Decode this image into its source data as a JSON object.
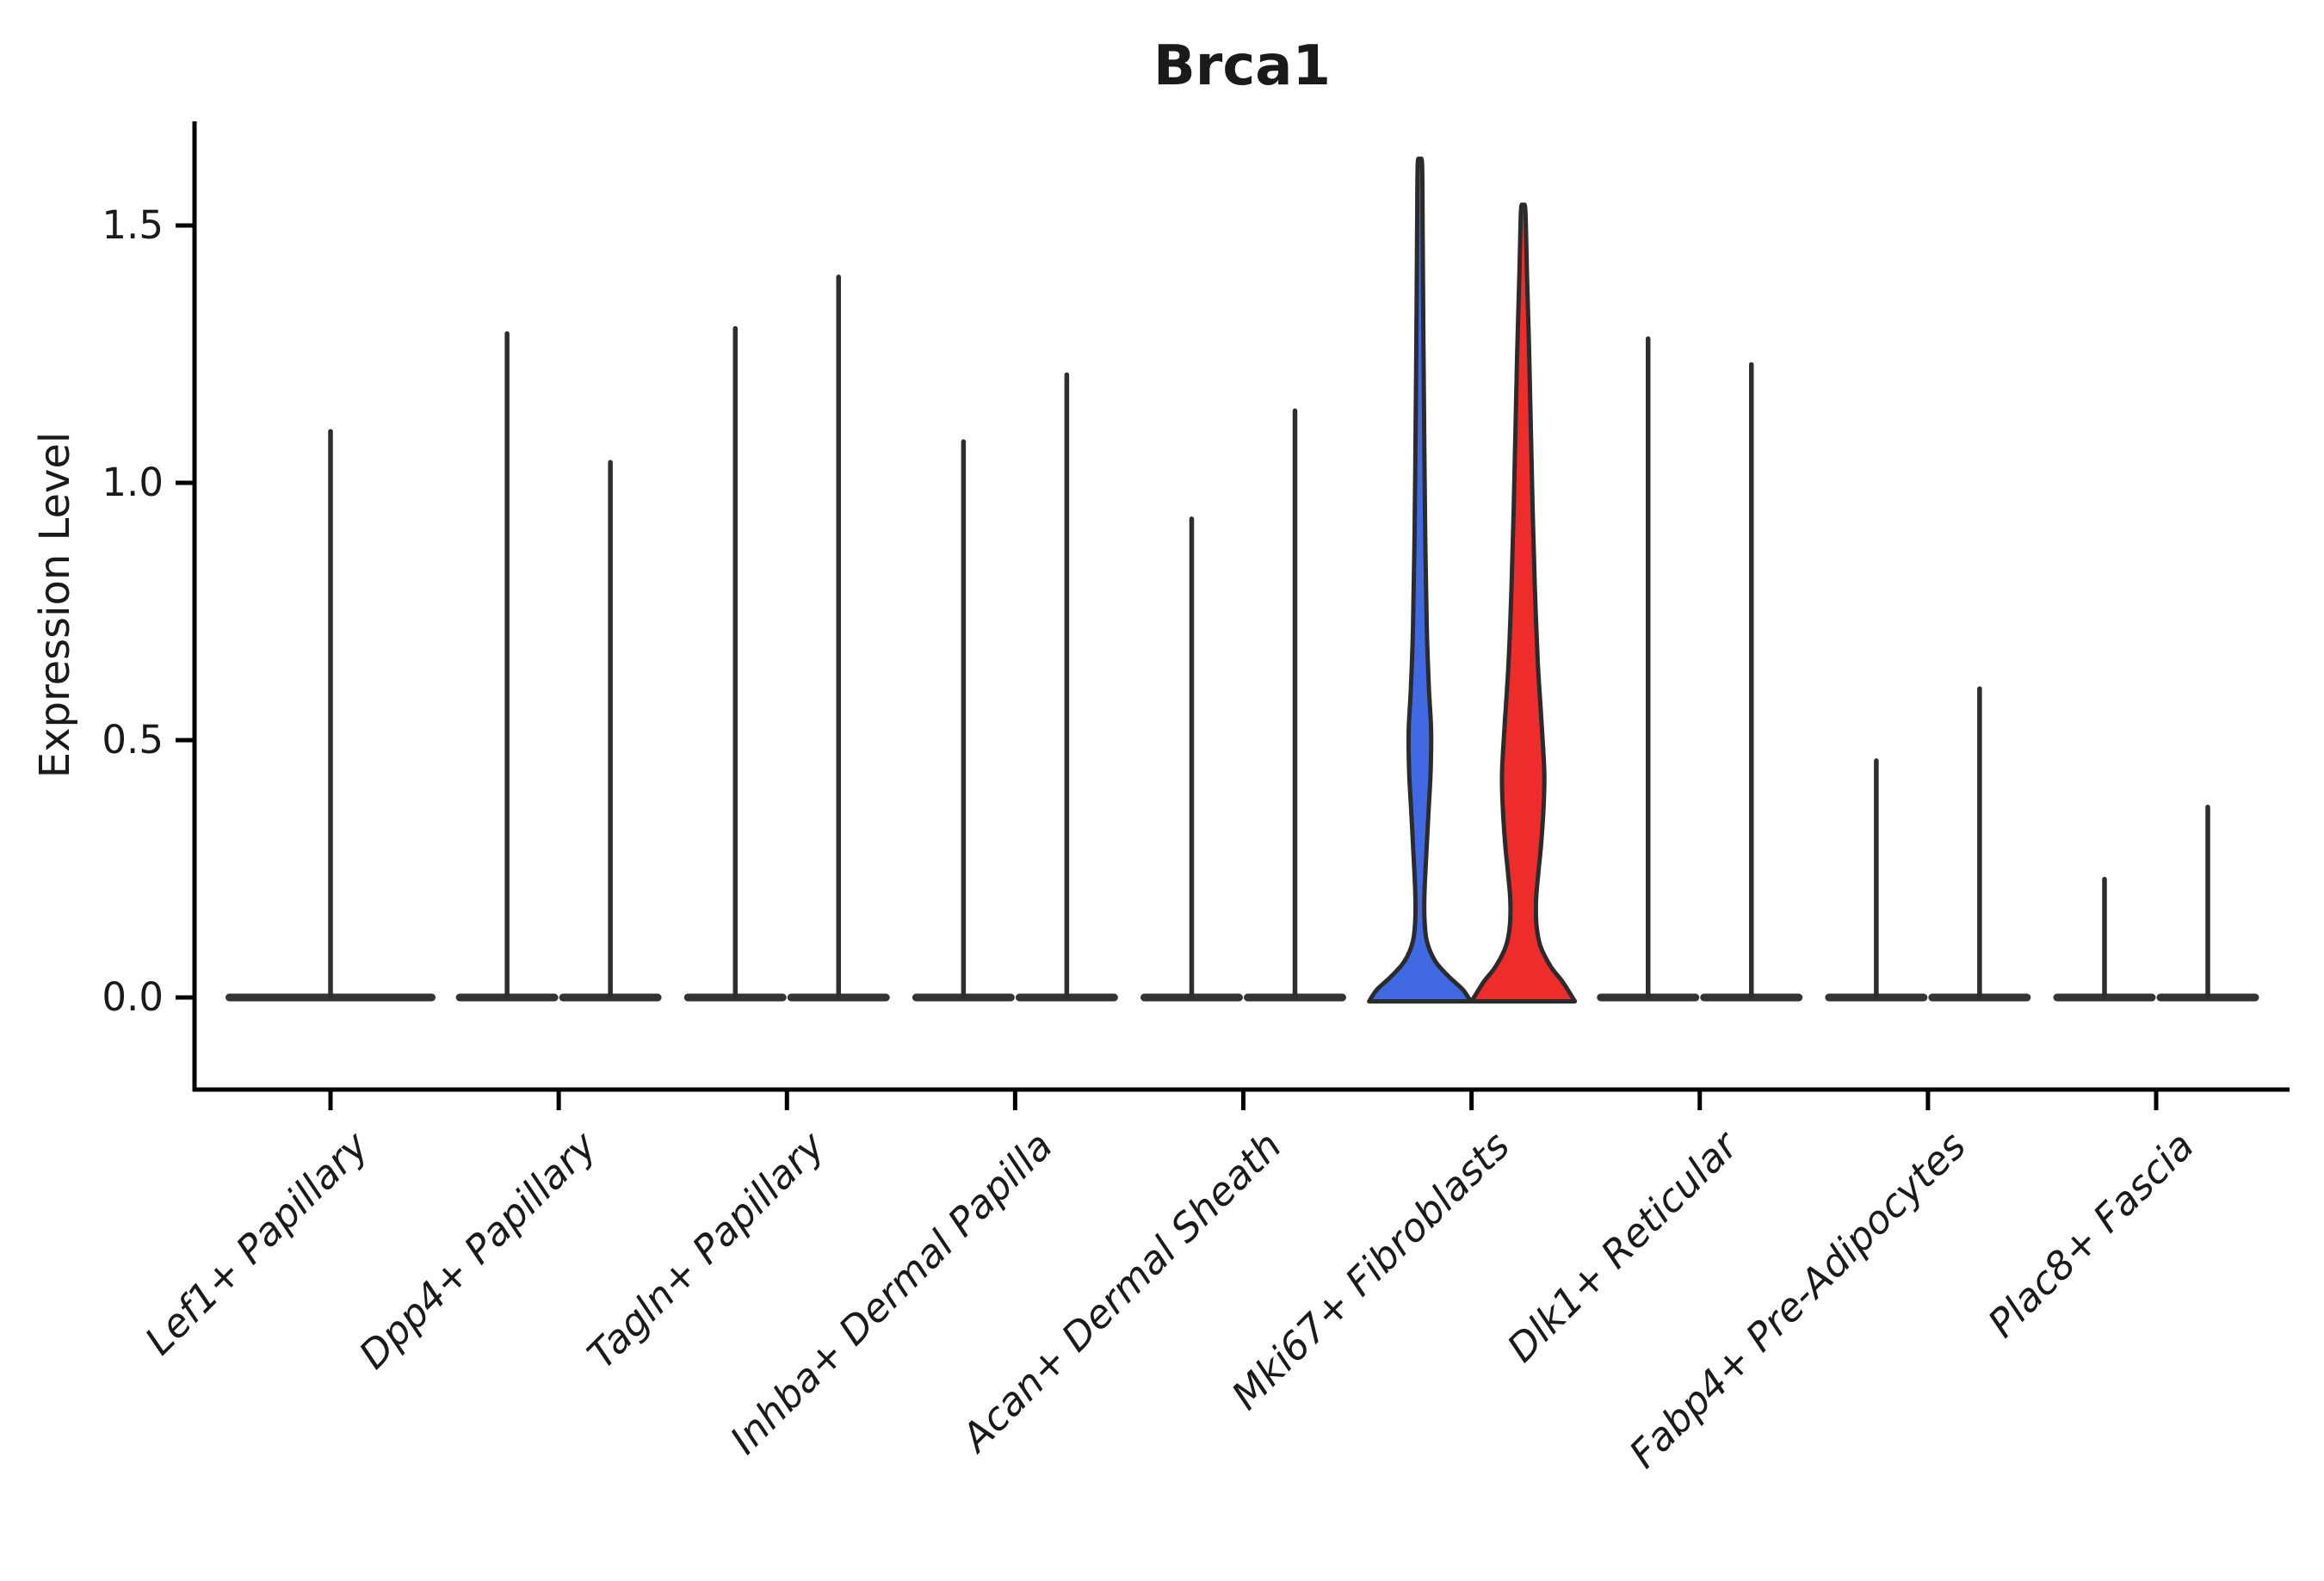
{
  "page": {
    "background": "#ffffff"
  },
  "chart_data": {
    "type": "violin",
    "title": "Brca1",
    "ylabel": "Expression Level",
    "xlabel": "",
    "grid": false,
    "legend": "none",
    "ylim": [
      -0.09,
      1.72
    ],
    "yticks": [
      {
        "label": "0.0",
        "value": 0.0
      },
      {
        "label": "0.5",
        "value": 0.5
      },
      {
        "label": "1.0",
        "value": 1.0
      },
      {
        "label": "1.5",
        "value": 1.5
      }
    ],
    "categories": [
      "Lef1+ Papillary",
      "Dpp4+ Papillary",
      "Tagln+ Papillary",
      "Inhba+ Dermal Papilla",
      "Acan+ Dermal Sheath",
      "Mki67+ Fibroblasts",
      "Dlk1+ Reticular",
      "Fabp4+ Pre-Adipocytes",
      "Plac8+ Fascia"
    ],
    "violins": [
      {
        "category": "Lef1+ Papillary",
        "items": [
          {
            "group": "single",
            "style": "thin",
            "span": "full",
            "max": 1.1
          }
        ]
      },
      {
        "category": "Dpp4+ Papillary",
        "items": [
          {
            "group": "left",
            "style": "thin",
            "max": 1.29
          },
          {
            "group": "right",
            "style": "thin",
            "max": 1.04
          }
        ]
      },
      {
        "category": "Tagln+ Papillary",
        "items": [
          {
            "group": "left",
            "style": "thin",
            "max": 1.3
          },
          {
            "group": "right",
            "style": "thin",
            "max": 1.4
          }
        ]
      },
      {
        "category": "Inhba+ Dermal Papilla",
        "items": [
          {
            "group": "left",
            "style": "thin",
            "max": 1.08
          },
          {
            "group": "right",
            "style": "thin",
            "max": 1.21
          }
        ]
      },
      {
        "category": "Acan+ Dermal Sheath",
        "items": [
          {
            "group": "left",
            "style": "thin",
            "max": 0.93
          },
          {
            "group": "right",
            "style": "thin",
            "max": 1.14
          }
        ]
      },
      {
        "category": "Mki67+ Fibroblasts",
        "items": [
          {
            "group": "left",
            "style": "filled",
            "fill": "#4169E1",
            "max": 1.62,
            "profile": [
              [
                1.62,
                2.5
              ],
              [
                1.5,
                3.2
              ],
              [
                1.3,
                4.0
              ],
              [
                1.1,
                5.0
              ],
              [
                0.9,
                6.2
              ],
              [
                0.72,
                8.0
              ],
              [
                0.6,
                10.5
              ],
              [
                0.52,
                13.0
              ],
              [
                0.44,
                12.5
              ],
              [
                0.36,
                10.0
              ],
              [
                0.28,
                7.5
              ],
              [
                0.21,
                5.5
              ],
              [
                0.16,
                5.2
              ],
              [
                0.11,
                8.0
              ],
              [
                0.07,
                18.0
              ],
              [
                0.04,
                34.0
              ],
              [
                0.015,
                50.0
              ],
              [
                0.0,
                59.0
              ]
            ]
          },
          {
            "group": "right",
            "style": "filled",
            "fill": "#EE2C2C",
            "max": 1.53,
            "profile": [
              [
                1.53,
                2.5
              ],
              [
                1.4,
                4.5
              ],
              [
                1.25,
                7.0
              ],
              [
                1.1,
                9.0
              ],
              [
                0.95,
                11.0
              ],
              [
                0.8,
                13.5
              ],
              [
                0.65,
                17.0
              ],
              [
                0.53,
                21.5
              ],
              [
                0.44,
                24.5
              ],
              [
                0.38,
                24.0
              ],
              [
                0.3,
                21.0
              ],
              [
                0.24,
                17.5
              ],
              [
                0.19,
                15.0
              ],
              [
                0.14,
                15.5
              ],
              [
                0.1,
                20.0
              ],
              [
                0.06,
                32.0
              ],
              [
                0.03,
                46.0
              ],
              [
                0.0,
                60.0
              ]
            ]
          }
        ]
      },
      {
        "category": "Dlk1+ Reticular",
        "items": [
          {
            "group": "left",
            "style": "thin",
            "max": 1.28
          },
          {
            "group": "right",
            "style": "thin",
            "max": 1.23
          }
        ]
      },
      {
        "category": "Fabp4+ Pre-Adipocytes",
        "items": [
          {
            "group": "left",
            "style": "thin",
            "max": 0.46
          },
          {
            "group": "right",
            "style": "thin",
            "max": 0.6
          }
        ]
      },
      {
        "category": "Plac8+ Fascia",
        "items": [
          {
            "group": "left",
            "style": "thin",
            "max": 0.23
          },
          {
            "group": "right",
            "style": "thin",
            "max": 0.37
          }
        ]
      }
    ],
    "colors": {
      "spine": "#000000",
      "tick": "#000000",
      "spike": "#2e2e2e",
      "violin_outline": "#2b2b2b",
      "flat_base": "#333333",
      "blue_fill": "#4169E1",
      "red_fill": "#EE2C2C",
      "text": "#1a1a1a"
    }
  }
}
